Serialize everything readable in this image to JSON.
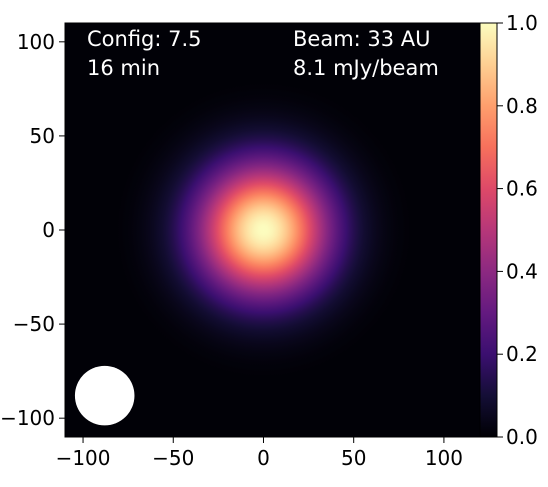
{
  "chart_data": {
    "type": "heatmap",
    "colormap": "magma",
    "map": {
      "profile": "gaussian",
      "center": [
        0,
        0
      ],
      "fwhm": 60,
      "peak": 1.0,
      "background": "#000004"
    },
    "xlim": [
      -110,
      120
    ],
    "ylim": [
      -110,
      110
    ],
    "x_ticks": [
      -100,
      -50,
      0,
      50,
      100
    ],
    "y_ticks": [
      -100,
      -50,
      0,
      50,
      100
    ],
    "x_tick_labels": [
      "−100",
      "−50",
      "0",
      "50",
      "100"
    ],
    "y_tick_labels": [
      "−100",
      "−50",
      "0",
      "50",
      "100"
    ],
    "colorbar": {
      "range": [
        0.0,
        1.0
      ],
      "ticks": [
        0.0,
        0.2,
        0.4,
        0.6,
        0.8,
        1.0
      ],
      "tick_labels": [
        "0.0",
        "0.2",
        "0.4",
        "0.6",
        "0.8",
        "1.0"
      ]
    },
    "beam": {
      "center": [
        -88,
        -88
      ],
      "diameter": 33,
      "color": "#ffffff"
    },
    "annotations": {
      "config": "Config: 7.5",
      "time": "16 min",
      "beam": "Beam: 33 AU",
      "sensitivity": "8.1 mJy/beam"
    }
  }
}
